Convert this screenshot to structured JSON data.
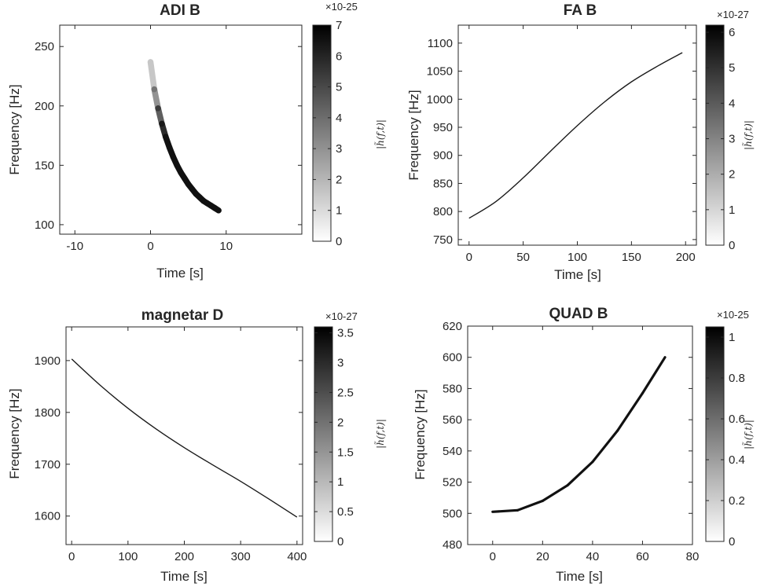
{
  "chart_data": [
    {
      "type": "heatmap",
      "title": "ADI B",
      "xlabel": "Time [s]",
      "ylabel": "Frequency [Hz]",
      "xlim": [
        -12,
        20
      ],
      "ylim": [
        92,
        268
      ],
      "xticks": [
        -10,
        0,
        10
      ],
      "xtick_labels": [
        "-10",
        "0",
        "10"
      ],
      "yticks": [
        100,
        150,
        200,
        250
      ],
      "ytick_labels": [
        "100",
        "150",
        "200",
        "250"
      ],
      "colorbar": {
        "label": "|h̃(f,t)|",
        "exponent": "×10-25",
        "range": [
          0,
          7
        ],
        "ticks": [
          0,
          1,
          2,
          3,
          4,
          5,
          6,
          7
        ],
        "tick_labels": [
          "0",
          "1",
          "2",
          "3",
          "4",
          "5",
          "6",
          "7"
        ]
      },
      "series": [
        {
          "x": [
            0,
            0.5,
            1,
            1.5,
            2,
            2.5,
            3,
            3.5,
            4,
            4.5,
            5,
            5.5,
            6,
            6.5,
            7,
            7.5,
            8,
            8.5,
            9
          ],
          "y": [
            237,
            214,
            198,
            185,
            174,
            165,
            157,
            150,
            144,
            139,
            134,
            130,
            126,
            123,
            120,
            118,
            116,
            114,
            112
          ]
        }
      ],
      "band_width_hz": 5,
      "fade_in_s": 2
    },
    {
      "type": "line",
      "title": "FA B",
      "xlabel": "Time [s]",
      "ylabel": "Frequency [Hz]",
      "xlim": [
        -10,
        210
      ],
      "ylim": [
        740,
        1132
      ],
      "xticks": [
        0,
        50,
        100,
        150,
        200
      ],
      "xtick_labels": [
        "0",
        "50",
        "100",
        "150",
        "200"
      ],
      "yticks": [
        750,
        800,
        850,
        900,
        950,
        1000,
        1050,
        1100
      ],
      "ytick_labels": [
        "750",
        "800",
        "850",
        "900",
        "950",
        "1000",
        "1050",
        "1100"
      ],
      "colorbar": {
        "label": "|h̃(f,t)|",
        "exponent": "×10-27",
        "range": [
          0,
          6.2
        ],
        "ticks": [
          0,
          1,
          2,
          3,
          4,
          5,
          6
        ],
        "tick_labels": [
          "0",
          "1",
          "2",
          "3",
          "4",
          "5",
          "6"
        ]
      },
      "series": [
        {
          "x": [
            0,
            25,
            50,
            75,
            100,
            125,
            150,
            175,
            197
          ],
          "y": [
            788,
            818,
            860,
            907,
            953,
            995,
            1031,
            1060,
            1083
          ]
        }
      ]
    },
    {
      "type": "line",
      "title": "magnetar D",
      "xlabel": "Time [s]",
      "ylabel": "Frequency [Hz]",
      "xlim": [
        -10,
        410
      ],
      "ylim": [
        1545,
        1965
      ],
      "xticks": [
        0,
        100,
        200,
        300,
        400
      ],
      "xtick_labels": [
        "0",
        "100",
        "200",
        "300",
        "400"
      ],
      "yticks": [
        1600,
        1700,
        1800,
        1900
      ],
      "ytick_labels": [
        "1600",
        "1700",
        "1800",
        "1900"
      ],
      "colorbar": {
        "label": "|h̃(f,t)|",
        "exponent": "×10-27",
        "range": [
          0,
          3.6
        ],
        "ticks": [
          0,
          0.5,
          1,
          1.5,
          2,
          2.5,
          3,
          3.5
        ],
        "tick_labels": [
          "0",
          "0.5",
          "1",
          "1.5",
          "2",
          "2.5",
          "3",
          "3.5"
        ]
      },
      "series": [
        {
          "x": [
            0,
            50,
            100,
            150,
            200,
            250,
            300,
            350,
            400
          ],
          "y": [
            1903,
            1853,
            1808,
            1768,
            1732,
            1699,
            1667,
            1633,
            1598
          ]
        }
      ]
    },
    {
      "type": "heatmap",
      "title": "QUAD B",
      "xlabel": "Time [s]",
      "ylabel": "Frequency [Hz]",
      "xlim": [
        -10,
        80
      ],
      "ylim": [
        480,
        620
      ],
      "xticks": [
        0,
        20,
        40,
        60,
        80
      ],
      "xtick_labels": [
        "0",
        "20",
        "40",
        "60",
        "80"
      ],
      "yticks": [
        480,
        500,
        520,
        540,
        560,
        580,
        600,
        620
      ],
      "ytick_labels": [
        "480",
        "500",
        "520",
        "540",
        "560",
        "580",
        "600",
        "620"
      ],
      "colorbar": {
        "label": "|h̃(f,t)|",
        "exponent": "×10-25",
        "range": [
          0,
          1.05
        ],
        "ticks": [
          0,
          0.2,
          0.4,
          0.6,
          0.8,
          1
        ],
        "tick_labels": [
          "0",
          "0.2",
          "0.4",
          "0.6",
          "0.8",
          "1"
        ]
      },
      "series": [
        {
          "x": [
            0,
            10,
            20,
            30,
            40,
            50,
            60,
            69
          ],
          "y": [
            501,
            502,
            508,
            518,
            533,
            553,
            577,
            600
          ]
        }
      ],
      "band_width_hz": 1.6,
      "fade_in_s": 0
    }
  ]
}
